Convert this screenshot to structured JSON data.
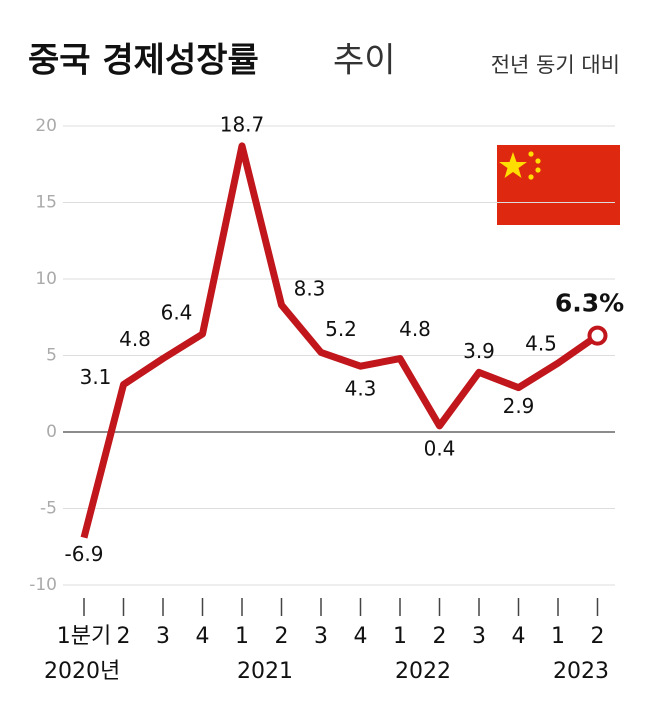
{
  "chart_data": {
    "type": "line",
    "title": "중국 경제성장률",
    "title_light": "추이",
    "subtitle": "전년 동기 대비",
    "categories": [
      "1분기",
      "2",
      "3",
      "4",
      "1",
      "2",
      "3",
      "4",
      "1",
      "2",
      "3",
      "4",
      "1",
      "2"
    ],
    "years": [
      "2020년",
      null,
      null,
      null,
      "2021",
      null,
      null,
      null,
      "2022",
      null,
      null,
      null,
      "2023",
      null
    ],
    "series": [
      {
        "name": "경제성장률",
        "color": "#c0161c",
        "values": [
          -6.9,
          3.1,
          4.8,
          6.4,
          18.7,
          8.3,
          5.2,
          4.3,
          4.8,
          0.4,
          3.9,
          2.9,
          4.5,
          6.3
        ],
        "value_labels": [
          "-6.9",
          "3.1",
          "4.8",
          "6.4",
          "18.7",
          "8.3",
          "5.2",
          "4.3",
          "4.8",
          "0.4",
          "3.9",
          "2.9",
          "4.5",
          "6.3%"
        ]
      }
    ],
    "ylim": [
      -10,
      20
    ],
    "yticks": [
      -10,
      -5,
      0,
      5,
      10,
      15,
      20
    ],
    "grid": true
  }
}
